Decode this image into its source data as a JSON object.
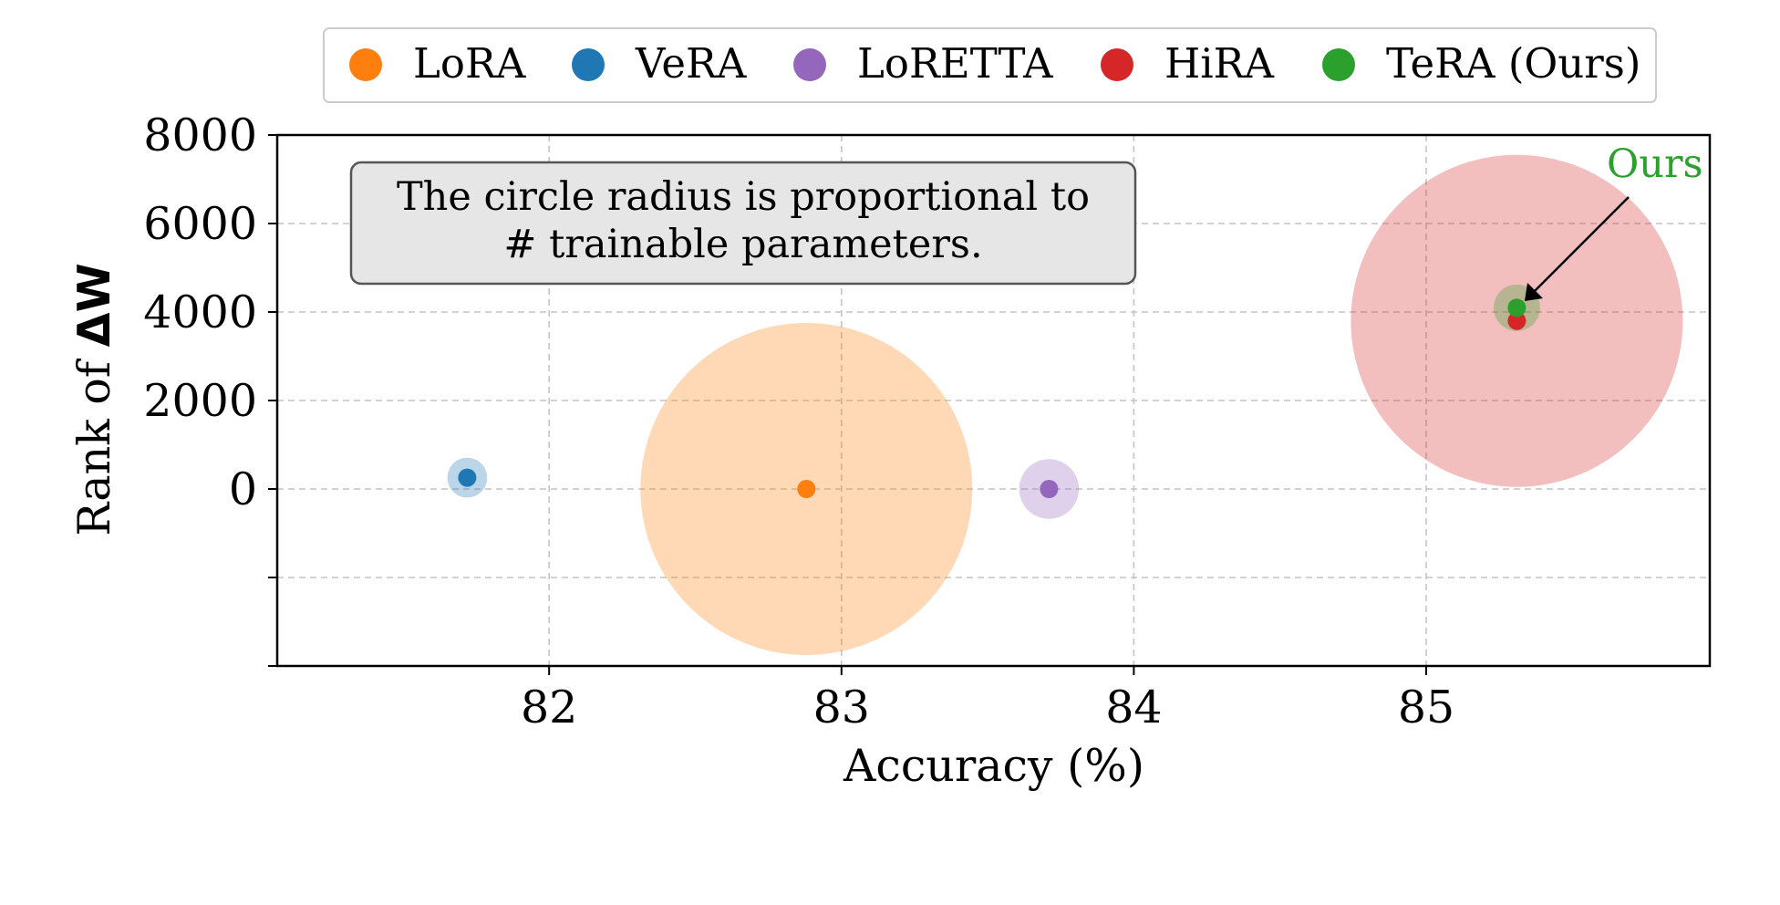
{
  "chart_data": {
    "type": "scatter",
    "xlabel": "Accuracy (%)",
    "ylabel_prefix": "Rank of ",
    "ylabel_symbol": "ΔW",
    "xlim": [
      81.07,
      85.97
    ],
    "ylim": [
      -4000,
      8000
    ],
    "x_ticks": [
      82,
      83,
      84,
      85
    ],
    "y_ticks": [
      8000,
      6000,
      4000,
      2000,
      0
    ],
    "y_tick_marks_unlabeled": [
      -2000
    ],
    "grid": true,
    "legend_position": "top-center",
    "annotation_box": {
      "lines": [
        "The circle radius is proportional to",
        "# trainable parameters."
      ]
    },
    "arrow_annotation": {
      "text": "Ours",
      "target_series": "TeRA (Ours)",
      "color": "#2ca02c"
    },
    "series": [
      {
        "name": "LoRA",
        "color": "#ff7f0e",
        "x": 82.88,
        "y": 0,
        "radius_rel": 1.0
      },
      {
        "name": "VeRA",
        "color": "#1f77b4",
        "x": 81.72,
        "y": 256,
        "radius_rel": 0.12
      },
      {
        "name": "LoRETTA",
        "color": "#9467bd",
        "x": 83.71,
        "y": 0,
        "radius_rel": 0.18
      },
      {
        "name": "HiRA",
        "color": "#d62728",
        "x": 85.31,
        "y": 3800,
        "radius_rel": 1.0
      },
      {
        "name": "TeRA (Ours)",
        "color": "#2ca02c",
        "x": 85.31,
        "y": 4096,
        "radius_rel": 0.14
      }
    ]
  }
}
